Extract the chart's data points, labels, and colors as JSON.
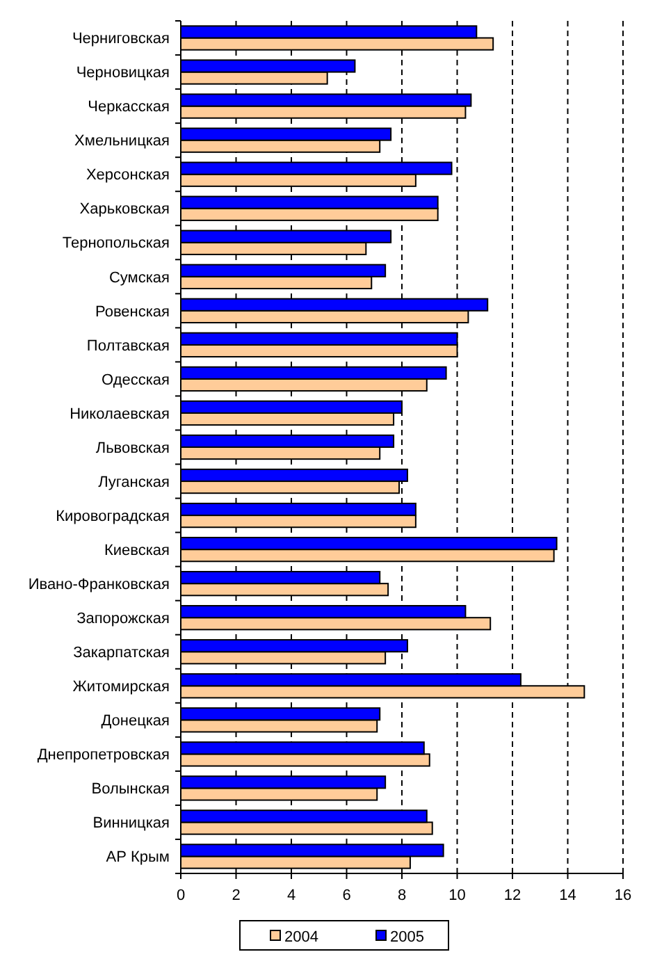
{
  "chart_data": {
    "type": "bar",
    "orientation": "horizontal",
    "categories": [
      "Черниговская",
      "Черновицкая",
      "Черкасская",
      "Хмельницкая",
      "Херсонская",
      "Харьковская",
      "Тернопольская",
      "Сумская",
      "Ровенская",
      "Полтавская",
      "Одесская",
      "Николаевская",
      "Львовская",
      "Луганская",
      "Кировоградская",
      "Киевская",
      "Ивано-Франковская",
      "Запорожская",
      "Закарпатская",
      "Житомирская",
      "Донецкая",
      "Днепропетровская",
      "Волынская",
      "Винницкая",
      "АР Крым"
    ],
    "series": [
      {
        "name": "2004",
        "color": "#ffcc99",
        "values": [
          11.3,
          5.3,
          10.3,
          7.2,
          8.5,
          9.3,
          6.7,
          6.9,
          10.4,
          10.0,
          8.9,
          7.7,
          7.2,
          7.9,
          8.5,
          13.5,
          7.5,
          11.2,
          7.4,
          14.6,
          7.1,
          9.0,
          7.1,
          9.1,
          8.3
        ]
      },
      {
        "name": "2005",
        "color": "#0000ff",
        "values": [
          10.7,
          6.3,
          10.5,
          7.6,
          9.8,
          9.3,
          7.6,
          7.4,
          11.1,
          10.0,
          9.6,
          8.0,
          7.7,
          8.2,
          8.5,
          13.6,
          7.2,
          10.3,
          8.2,
          12.3,
          7.2,
          8.8,
          7.4,
          8.9,
          9.5
        ]
      }
    ],
    "xlim": [
      0,
      16
    ],
    "xticks": [
      0,
      2,
      4,
      6,
      8,
      10,
      12,
      14,
      16
    ],
    "grid": "x",
    "legend": "bottom"
  }
}
